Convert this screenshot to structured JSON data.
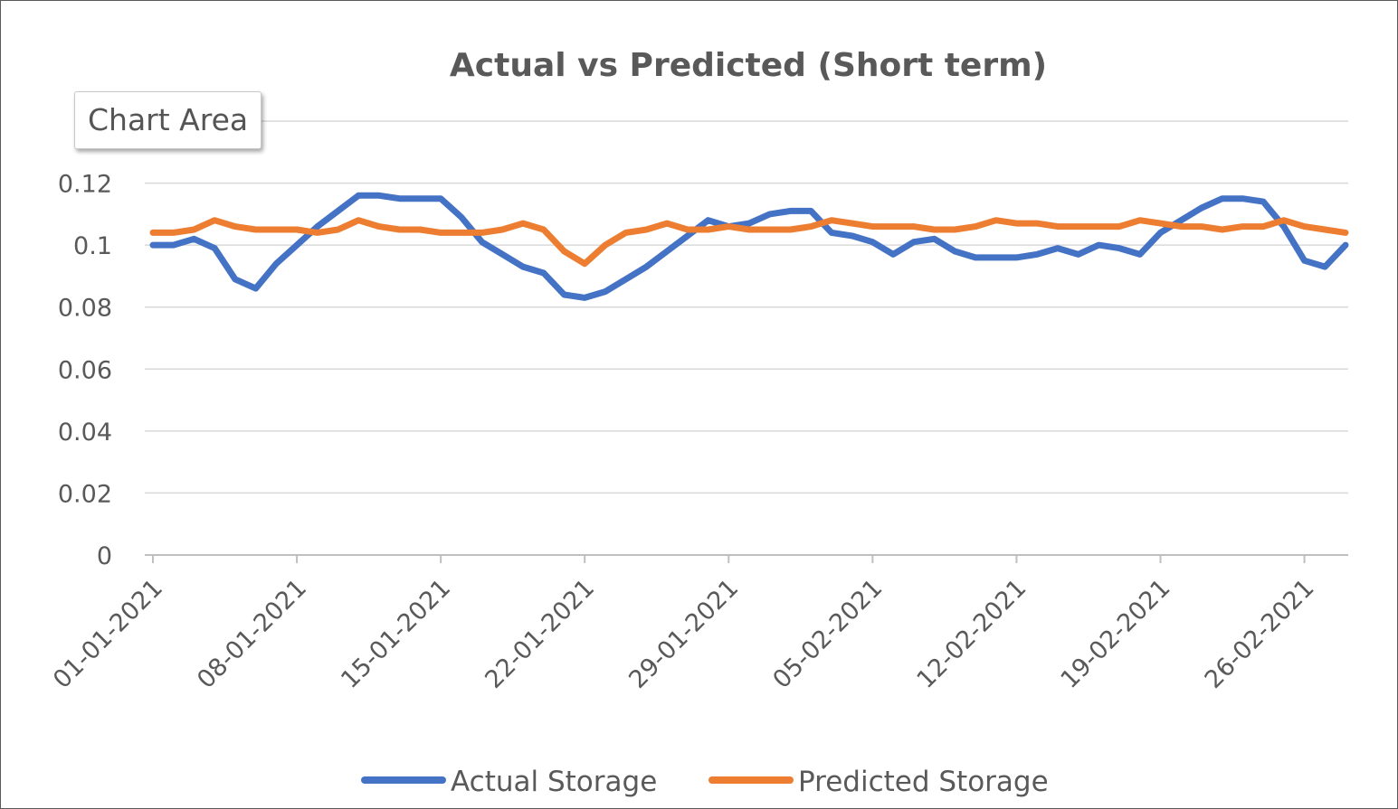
{
  "chart_data": {
    "type": "line",
    "title": "Actual vs Predicted (Short term)",
    "xlabel": "",
    "ylabel": "",
    "ylim": [
      0,
      0.14
    ],
    "y_ticks": [
      "0",
      "0.02",
      "0.04",
      "0.06",
      "0.08",
      "0.1",
      "0.12"
    ],
    "x_tick_labels": [
      "01-01-2021",
      "08-01-2021",
      "15-01-2021",
      "22-01-2021",
      "29-01-2021",
      "05-02-2021",
      "12-02-2021",
      "19-02-2021",
      "26-02-2021"
    ],
    "x": [
      "01-01-2021",
      "02-01-2021",
      "03-01-2021",
      "04-01-2021",
      "05-01-2021",
      "06-01-2021",
      "07-01-2021",
      "08-01-2021",
      "09-01-2021",
      "10-01-2021",
      "11-01-2021",
      "12-01-2021",
      "13-01-2021",
      "14-01-2021",
      "15-01-2021",
      "16-01-2021",
      "17-01-2021",
      "18-01-2021",
      "19-01-2021",
      "20-01-2021",
      "21-01-2021",
      "22-01-2021",
      "23-01-2021",
      "24-01-2021",
      "25-01-2021",
      "26-01-2021",
      "27-01-2021",
      "28-01-2021",
      "29-01-2021",
      "30-01-2021",
      "31-01-2021",
      "01-02-2021",
      "02-02-2021",
      "03-02-2021",
      "04-02-2021",
      "05-02-2021",
      "06-02-2021",
      "07-02-2021",
      "08-02-2021",
      "09-02-2021",
      "10-02-2021",
      "11-02-2021",
      "12-02-2021",
      "13-02-2021",
      "14-02-2021",
      "15-02-2021",
      "16-02-2021",
      "17-02-2021",
      "18-02-2021",
      "19-02-2021",
      "20-02-2021",
      "21-02-2021",
      "22-02-2021",
      "23-02-2021",
      "24-02-2021",
      "25-02-2021",
      "26-02-2021",
      "27-02-2021",
      "28-02-2021"
    ],
    "series": [
      {
        "name": "Actual Storage",
        "color": "#4472C4",
        "values": [
          0.1,
          0.1,
          0.102,
          0.099,
          0.089,
          0.086,
          0.094,
          0.1,
          0.106,
          0.111,
          0.116,
          0.116,
          0.115,
          0.115,
          0.115,
          0.109,
          0.101,
          0.097,
          0.093,
          0.091,
          0.084,
          0.083,
          0.085,
          0.089,
          0.093,
          0.098,
          0.103,
          0.108,
          0.106,
          0.107,
          0.11,
          0.111,
          0.111,
          0.104,
          0.103,
          0.101,
          0.097,
          0.101,
          0.102,
          0.098,
          0.096,
          0.096,
          0.096,
          0.097,
          0.099,
          0.097,
          0.1,
          0.099,
          0.097,
          0.104,
          0.108,
          0.112,
          0.115,
          0.115,
          0.114,
          0.106,
          0.095,
          0.093,
          0.1
        ]
      },
      {
        "name": "Predicted Storage",
        "color": "#ED7D31",
        "values": [
          0.104,
          0.104,
          0.105,
          0.108,
          0.106,
          0.105,
          0.105,
          0.105,
          0.104,
          0.105,
          0.108,
          0.106,
          0.105,
          0.105,
          0.104,
          0.104,
          0.104,
          0.105,
          0.107,
          0.105,
          0.098,
          0.094,
          0.1,
          0.104,
          0.105,
          0.107,
          0.105,
          0.105,
          0.106,
          0.105,
          0.105,
          0.105,
          0.106,
          0.108,
          0.107,
          0.106,
          0.106,
          0.106,
          0.105,
          0.105,
          0.106,
          0.108,
          0.107,
          0.107,
          0.106,
          0.106,
          0.106,
          0.106,
          0.108,
          0.107,
          0.106,
          0.106,
          0.105,
          0.106,
          0.106,
          0.108,
          0.106,
          0.105,
          0.104
        ]
      }
    ],
    "legend_position": "bottom",
    "grid": true
  },
  "tooltip": {
    "label": "Chart Area",
    "partial_tick": "0."
  }
}
